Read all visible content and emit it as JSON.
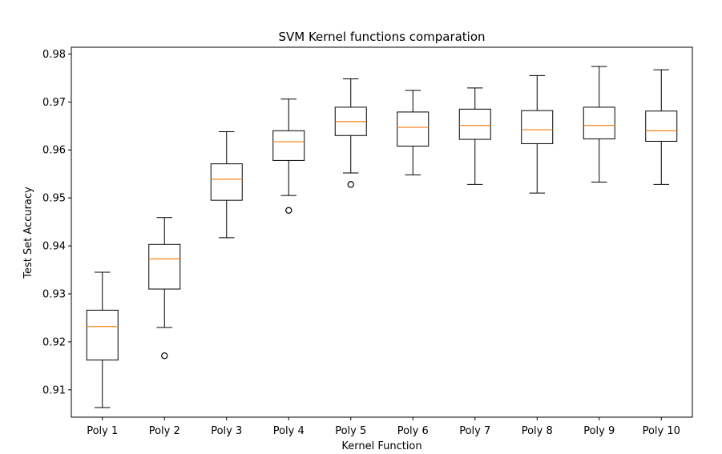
{
  "chart_data": {
    "type": "box",
    "title": "SVM Kernel functions comparation",
    "xlabel": "Kernel Function",
    "ylabel": "Test Set Accuracy",
    "ylim": [
      0.9043,
      0.9814
    ],
    "yticks": [
      "0.91",
      "0.92",
      "0.93",
      "0.94",
      "0.95",
      "0.96",
      "0.97",
      "0.98"
    ],
    "ytick_values": [
      0.91,
      0.92,
      0.93,
      0.94,
      0.95,
      0.96,
      0.97,
      0.98
    ],
    "grid": false,
    "colors": {
      "box": "#000000",
      "median": "#ff7f0e",
      "background": "#ffffff"
    },
    "categories": [
      "Poly 1",
      "Poly 2",
      "Poly 3",
      "Poly 4",
      "Poly 5",
      "Poly 6",
      "Poly 7",
      "Poly 8",
      "Poly 9",
      "Poly 10"
    ],
    "boxes": [
      {
        "whislo": 0.9063,
        "q1": 0.9162,
        "med": 0.9232,
        "q3": 0.9266,
        "whishi": 0.9345,
        "fliers": []
      },
      {
        "whislo": 0.923,
        "q1": 0.931,
        "med": 0.9373,
        "q3": 0.9403,
        "whishi": 0.9459,
        "fliers": [
          0.9171
        ]
      },
      {
        "whislo": 0.9417,
        "q1": 0.9495,
        "med": 0.9539,
        "q3": 0.9571,
        "whishi": 0.9638,
        "fliers": []
      },
      {
        "whislo": 0.9505,
        "q1": 0.9578,
        "med": 0.9617,
        "q3": 0.964,
        "whishi": 0.9706,
        "fliers": [
          0.9474
        ]
      },
      {
        "whislo": 0.9552,
        "q1": 0.963,
        "med": 0.9659,
        "q3": 0.9689,
        "whishi": 0.9748,
        "fliers": [
          0.9528
        ]
      },
      {
        "whislo": 0.9548,
        "q1": 0.9608,
        "med": 0.9647,
        "q3": 0.9679,
        "whishi": 0.9724,
        "fliers": []
      },
      {
        "whislo": 0.9528,
        "q1": 0.9622,
        "med": 0.9651,
        "q3": 0.9685,
        "whishi": 0.9729,
        "fliers": []
      },
      {
        "whislo": 0.951,
        "q1": 0.9613,
        "med": 0.9642,
        "q3": 0.9682,
        "whishi": 0.9755,
        "fliers": []
      },
      {
        "whislo": 0.9533,
        "q1": 0.9623,
        "med": 0.9651,
        "q3": 0.9689,
        "whishi": 0.9774,
        "fliers": []
      },
      {
        "whislo": 0.9528,
        "q1": 0.9618,
        "med": 0.964,
        "q3": 0.9681,
        "whishi": 0.9767,
        "fliers": []
      }
    ]
  }
}
